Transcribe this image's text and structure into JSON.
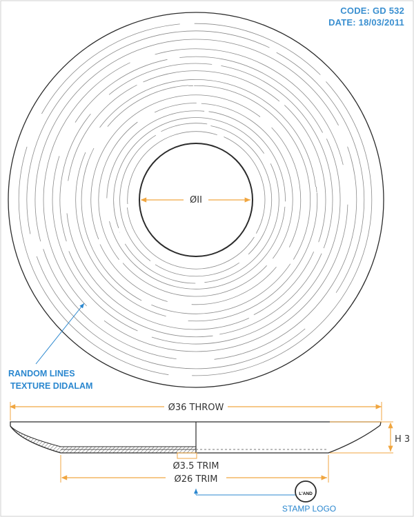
{
  "header": {
    "code": "CODE: GD 532",
    "date": "DATE: 18/03/2011"
  },
  "top_view": {
    "inner_diameter_label": "ØII",
    "texture_note_line1": "RANDOM LINES",
    "texture_note_line2": "TEXTURE DIDALAM"
  },
  "side_view": {
    "throw_label": "Ø36 THROW",
    "height_label": "H 3",
    "trim_small_label": "Ø3.5 TRIM",
    "trim_large_label": "Ø26 TRIM",
    "stamp_label": "STAMP LOGO",
    "stamp_logo_text": "L'AND"
  },
  "colors": {
    "line": "#2b2b2b",
    "dimension": "#f0a640",
    "annotation": "#2a87cf"
  }
}
